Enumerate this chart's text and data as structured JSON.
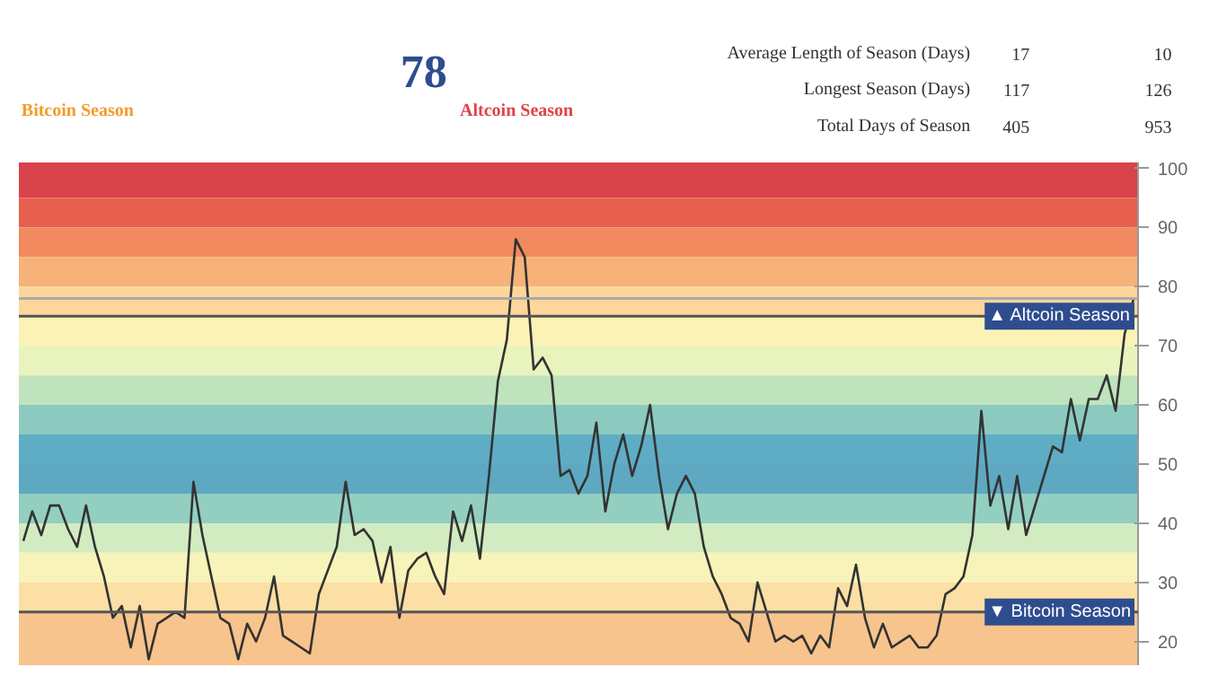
{
  "chart_data": [
    {
      "type": "other",
      "annotations": [
        "78",
        "Bitcoin Season",
        "Altcoin Season"
      ],
      "colors": [
        "#2e4d8f",
        "#f39c2c",
        "#e0434b"
      ]
    },
    {
      "type": "other",
      "categories": [
        "Average Length of Season (Days)",
        "Longest Season (Days)",
        "Total Days of Season"
      ],
      "series": [
        {
          "values": [
            17,
            117,
            405
          ]
        },
        {
          "values": [
            10,
            126,
            953
          ]
        }
      ],
      "data_labels": true
    },
    {
      "type": "line",
      "categories": [
        null,
        null,
        null,
        null,
        null,
        null,
        null,
        null,
        null,
        null,
        null,
        null,
        null,
        null,
        null,
        null,
        null,
        null,
        null,
        null,
        null,
        null,
        null,
        null,
        null,
        null,
        null,
        null,
        null,
        null,
        null,
        null,
        null,
        null,
        null,
        null,
        null,
        null,
        null,
        null,
        null,
        null,
        null,
        null,
        null,
        null,
        null,
        null,
        null,
        null,
        null,
        null,
        null,
        null,
        null,
        null,
        null,
        null,
        null,
        null,
        null,
        null,
        null,
        null,
        null,
        null,
        null,
        null,
        null,
        null,
        null,
        null,
        null,
        null,
        null,
        null,
        null,
        null,
        null,
        null,
        null,
        null,
        null,
        null,
        null,
        null,
        null,
        null,
        null,
        null,
        null,
        null,
        null,
        null,
        null,
        null,
        null,
        null,
        null,
        null,
        null,
        null,
        null,
        null,
        null,
        null,
        null,
        null,
        null,
        null,
        null,
        null,
        null,
        null,
        null,
        null,
        null,
        null,
        null,
        null,
        null,
        null,
        null,
        null,
        null
      ],
      "series": [
        {
          "color": "#333333",
          "values": [
            37,
            42,
            38,
            43,
            43,
            39,
            36,
            43,
            36,
            31,
            24,
            26,
            19,
            26,
            17,
            23,
            24,
            25,
            24,
            47,
            38,
            31,
            24,
            23,
            17,
            23,
            20,
            24,
            31,
            21,
            20,
            19,
            18,
            28,
            32,
            36,
            47,
            38,
            39,
            37,
            30,
            36,
            24,
            32,
            34,
            35,
            31,
            28,
            42,
            37,
            43,
            34,
            48,
            64,
            71,
            88,
            85,
            66,
            68,
            65,
            48,
            49,
            45,
            48,
            57,
            42,
            50,
            55,
            48,
            53,
            60,
            48,
            39,
            45,
            48,
            45,
            36,
            31,
            28,
            24,
            23,
            20,
            30,
            25,
            20,
            21,
            20,
            21,
            18,
            21,
            19,
            29,
            26,
            33,
            24,
            19,
            23,
            19,
            20,
            21,
            19,
            19,
            21,
            28,
            29,
            31,
            38,
            59,
            43,
            48,
            39,
            48,
            38,
            43,
            48,
            53,
            52,
            61,
            54,
            61,
            61,
            65,
            59,
            72,
            78
          ]
        }
      ],
      "ylim": [
        16,
        101
      ],
      "yticks": [
        20,
        30,
        40,
        50,
        60,
        70,
        80,
        90,
        100
      ],
      "grid": false,
      "marker": "none",
      "line_style": "solid",
      "ref_lines": [
        {
          "axis": "y",
          "value": 78,
          "label": null,
          "color": "#aaaaaa"
        },
        {
          "axis": "y",
          "value": 75,
          "label": "▲ Altcoin Season",
          "color": "#555555"
        },
        {
          "axis": "y",
          "value": 25,
          "label": "▼ Bitcoin Season",
          "color": "#555555"
        }
      ],
      "bands": [
        {
          "axis": "y",
          "from": 95,
          "to": 101,
          "color": "#d9434b"
        },
        {
          "axis": "y",
          "from": 90,
          "to": 95,
          "color": "#e7604f"
        },
        {
          "axis": "y",
          "from": 85,
          "to": 90,
          "color": "#f18a5f"
        },
        {
          "axis": "y",
          "from": 80,
          "to": 85,
          "color": "#f7b27a"
        },
        {
          "axis": "y",
          "from": 75,
          "to": 80,
          "color": "#fcd69a"
        },
        {
          "axis": "y",
          "from": 70,
          "to": 75,
          "color": "#fbf2b6"
        },
        {
          "axis": "y",
          "from": 65,
          "to": 70,
          "color": "#e8f3bd"
        },
        {
          "axis": "y",
          "from": 60,
          "to": 65,
          "color": "#bfe3bd"
        },
        {
          "axis": "y",
          "from": 55,
          "to": 60,
          "color": "#8ccabf"
        },
        {
          "axis": "y",
          "from": 50,
          "to": 55,
          "color": "#5fadc4"
        },
        {
          "axis": "y",
          "from": 45,
          "to": 50,
          "color": "#5ea9c1"
        },
        {
          "axis": "y",
          "from": 40,
          "to": 45,
          "color": "#93cfc0"
        },
        {
          "axis": "y",
          "from": 35,
          "to": 40,
          "color": "#d3ebc0"
        },
        {
          "axis": "y",
          "from": 30,
          "to": 35,
          "color": "#f8f3b8"
        },
        {
          "axis": "y",
          "from": 25,
          "to": 30,
          "color": "#fbdfa4"
        },
        {
          "axis": "y",
          "from": 16,
          "to": 25,
          "color": "#f8c48d"
        }
      ]
    }
  ]
}
